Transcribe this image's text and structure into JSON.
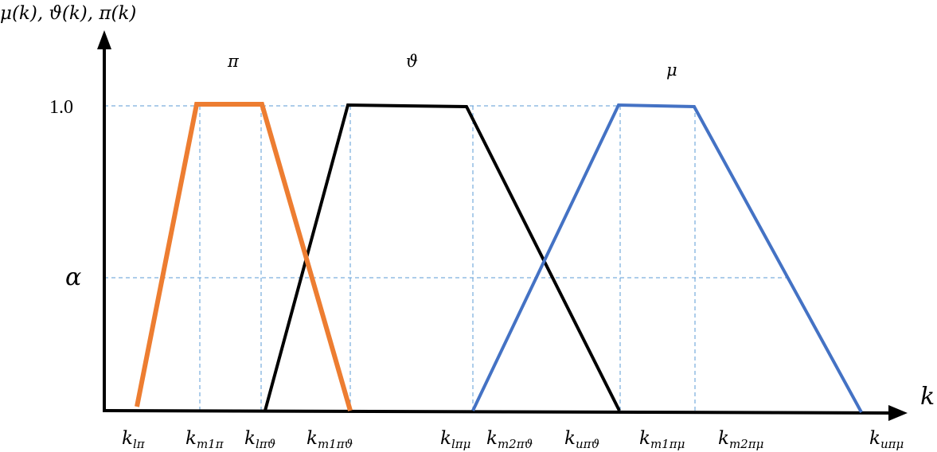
{
  "axes": {
    "y_label": "μ(k), ϑ(k), π(k)",
    "x_label": "k",
    "y_tick_top": "1.0",
    "y_tick_alpha": "α"
  },
  "curves": {
    "pi": {
      "label": "π",
      "color": "#ed7d31"
    },
    "nu": {
      "label": "ϑ",
      "color": "#000000"
    },
    "mu": {
      "label": "μ",
      "color": "#4472c4"
    }
  },
  "guide_color": "#5b9bd5",
  "x_ticks": [
    {
      "main": "k",
      "sub": "lπ"
    },
    {
      "main": "k",
      "sub": "m1π"
    },
    {
      "main": "k",
      "sub": "lπϑ"
    },
    {
      "main": "k",
      "sub": "m1πϑ"
    },
    {
      "main": "k",
      "sub": "lπμ"
    },
    {
      "main": "k",
      "sub": "m2πϑ"
    },
    {
      "main": "k",
      "sub": "uπϑ"
    },
    {
      "main": "k",
      "sub": "m1πμ"
    },
    {
      "main": "k",
      "sub": "m2πμ"
    },
    {
      "main": "k",
      "sub": "uπμ"
    }
  ]
}
